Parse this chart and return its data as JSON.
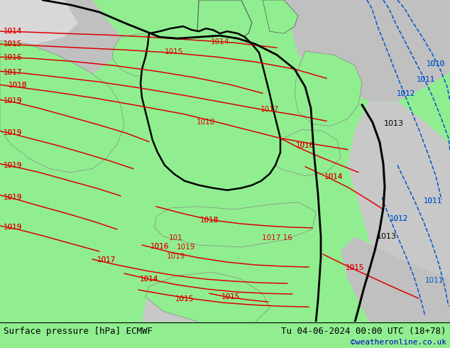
{
  "title_left": "Surface pressure [hPa] ECMWF",
  "title_right": "Tu 04-06-2024 00:00 UTC (18+78)",
  "watermark": "©weatheronline.co.uk",
  "figsize": [
    6.34,
    4.9
  ],
  "dpi": 100,
  "bg_green": "#90ee90",
  "bg_green2": "#a8d8a8",
  "bg_gray": "#b8b8b8",
  "bg_gray2": "#c8c8c8",
  "bg_white": "#e8e8e8",
  "red": "#dd0000",
  "blue": "#0055cc",
  "black": "#000000",
  "title_fontsize": 9,
  "watermark_color": "#0000cc",
  "label_fontsize": 7.5
}
